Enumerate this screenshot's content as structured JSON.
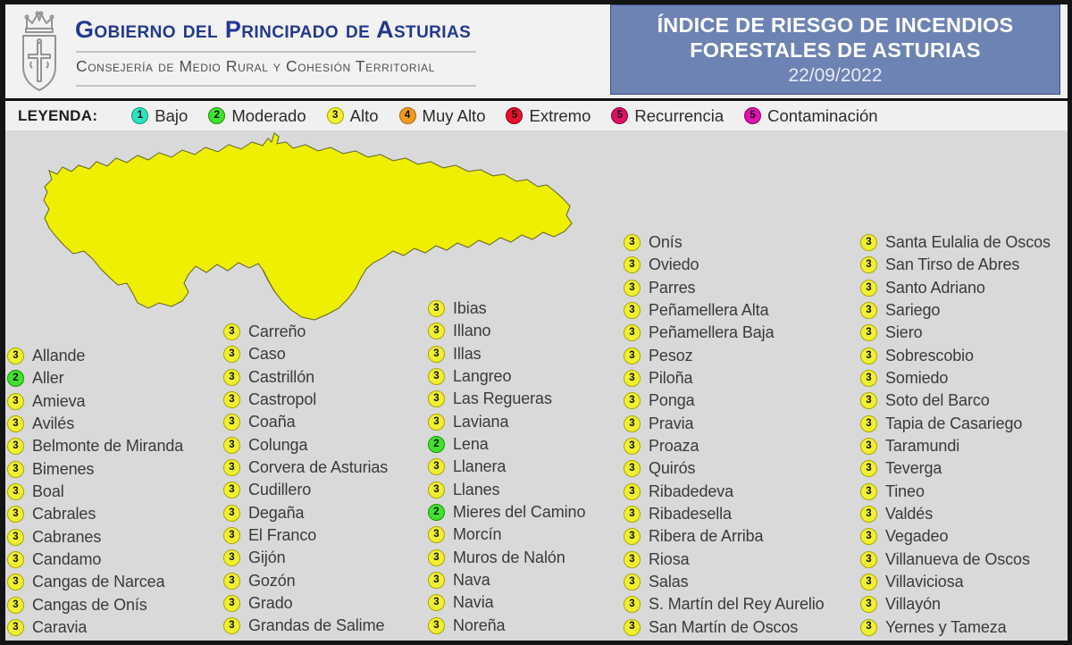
{
  "header": {
    "government": "Gobierno del Principado de Asturias",
    "department": "Consejería de Medio Rural y Cohesión Territorial",
    "title_line1": "ÍNDICE DE RIESGO DE INCENDIOS",
    "title_line2": "FORESTALES DE ASTURIAS",
    "date": "22/09/2022"
  },
  "legend": {
    "label": "LEYENDA:",
    "items": [
      {
        "level": "1",
        "name": "Bajo",
        "fill": "#2de3bd",
        "border": "#0b9a80"
      },
      {
        "level": "2",
        "name": "Moderado",
        "fill": "#3fe32d",
        "border": "#1a9200"
      },
      {
        "level": "3",
        "name": "Alto",
        "fill": "#f0f030",
        "border": "#a8a800"
      },
      {
        "level": "4",
        "name": "Muy Alto",
        "fill": "#f29a1f",
        "border": "#a86a00"
      },
      {
        "level": "5",
        "name": "Extremo",
        "fill": "#e6112b",
        "border": "#8d0012"
      },
      {
        "level": "5",
        "name": "Recurrencia",
        "fill": "#dd1163",
        "border": "#88003a"
      },
      {
        "level": "5",
        "name": "Contaminación",
        "fill": "#de13ad",
        "border": "#8a0068"
      }
    ]
  },
  "map": {
    "region": "Asturias",
    "fill_alto": "#eff000",
    "fill_moderado": "#3fe32d",
    "border_color": "#6b6b2e",
    "moderado_municipalities": [
      "Mieres del Camino",
      "Lena",
      "Aller"
    ]
  },
  "municipalities": {
    "columns": [
      [
        {
          "name": "Allande",
          "level": 3
        },
        {
          "name": "Aller",
          "level": 2
        },
        {
          "name": "Amieva",
          "level": 3
        },
        {
          "name": "Avilés",
          "level": 3
        },
        {
          "name": "Belmonte de Miranda",
          "level": 3
        },
        {
          "name": "Bimenes",
          "level": 3
        },
        {
          "name": "Boal",
          "level": 3
        },
        {
          "name": "Cabrales",
          "level": 3
        },
        {
          "name": "Cabranes",
          "level": 3
        },
        {
          "name": "Candamo",
          "level": 3
        },
        {
          "name": "Cangas de Narcea",
          "level": 3
        },
        {
          "name": "Cangas de Onís",
          "level": 3
        },
        {
          "name": "Caravia",
          "level": 3
        }
      ],
      [
        {
          "name": "Carreño",
          "level": 3
        },
        {
          "name": "Caso",
          "level": 3
        },
        {
          "name": "Castrillón",
          "level": 3
        },
        {
          "name": "Castropol",
          "level": 3
        },
        {
          "name": "Coaña",
          "level": 3
        },
        {
          "name": "Colunga",
          "level": 3
        },
        {
          "name": "Corvera de Asturias",
          "level": 3
        },
        {
          "name": "Cudillero",
          "level": 3
        },
        {
          "name": "Degaña",
          "level": 3
        },
        {
          "name": "El Franco",
          "level": 3
        },
        {
          "name": "Gijón",
          "level": 3
        },
        {
          "name": "Gozón",
          "level": 3
        },
        {
          "name": "Grado",
          "level": 3
        },
        {
          "name": "Grandas de Salime",
          "level": 3
        }
      ],
      [
        {
          "name": "Ibias",
          "level": 3
        },
        {
          "name": "Illano",
          "level": 3
        },
        {
          "name": "Illas",
          "level": 3
        },
        {
          "name": "Langreo",
          "level": 3
        },
        {
          "name": "Las Regueras",
          "level": 3
        },
        {
          "name": "Laviana",
          "level": 3
        },
        {
          "name": "Lena",
          "level": 2
        },
        {
          "name": "Llanera",
          "level": 3
        },
        {
          "name": "Llanes",
          "level": 3
        },
        {
          "name": "Mieres del Camino",
          "level": 2
        },
        {
          "name": "Morcín",
          "level": 3
        },
        {
          "name": "Muros de Nalón",
          "level": 3
        },
        {
          "name": "Nava",
          "level": 3
        },
        {
          "name": "Navia",
          "level": 3
        },
        {
          "name": "Noreña",
          "level": 3
        }
      ],
      [
        {
          "name": "Onís",
          "level": 3
        },
        {
          "name": "Oviedo",
          "level": 3
        },
        {
          "name": "Parres",
          "level": 3
        },
        {
          "name": "Peñamellera Alta",
          "level": 3
        },
        {
          "name": "Peñamellera Baja",
          "level": 3
        },
        {
          "name": "Pesoz",
          "level": 3
        },
        {
          "name": "Piloña",
          "level": 3
        },
        {
          "name": "Ponga",
          "level": 3
        },
        {
          "name": "Pravia",
          "level": 3
        },
        {
          "name": "Proaza",
          "level": 3
        },
        {
          "name": "Quirós",
          "level": 3
        },
        {
          "name": "Ribadedeva",
          "level": 3
        },
        {
          "name": "Ribadesella",
          "level": 3
        },
        {
          "name": "Ribera de Arriba",
          "level": 3
        },
        {
          "name": "Riosa",
          "level": 3
        },
        {
          "name": "Salas",
          "level": 3
        },
        {
          "name": "S. Martín del Rey Aurelio",
          "level": 3
        },
        {
          "name": "San Martín de Oscos",
          "level": 3
        }
      ],
      [
        {
          "name": "Santa Eulalia de Oscos",
          "level": 3
        },
        {
          "name": "San Tirso de Abres",
          "level": 3
        },
        {
          "name": "Santo Adriano",
          "level": 3
        },
        {
          "name": "Sariego",
          "level": 3
        },
        {
          "name": "Siero",
          "level": 3
        },
        {
          "name": "Sobrescobio",
          "level": 3
        },
        {
          "name": "Somiedo",
          "level": 3
        },
        {
          "name": "Soto del Barco",
          "level": 3
        },
        {
          "name": "Tapia de Casariego",
          "level": 3
        },
        {
          "name": "Taramundi",
          "level": 3
        },
        {
          "name": "Teverga",
          "level": 3
        },
        {
          "name": "Tineo",
          "level": 3
        },
        {
          "name": "Valdés",
          "level": 3
        },
        {
          "name": "Vegadeo",
          "level": 3
        },
        {
          "name": "Villanueva de Oscos",
          "level": 3
        },
        {
          "name": "Villaviciosa",
          "level": 3
        },
        {
          "name": "Villayón",
          "level": 3
        },
        {
          "name": "Yernes y Tameza",
          "level": 3
        }
      ]
    ]
  }
}
